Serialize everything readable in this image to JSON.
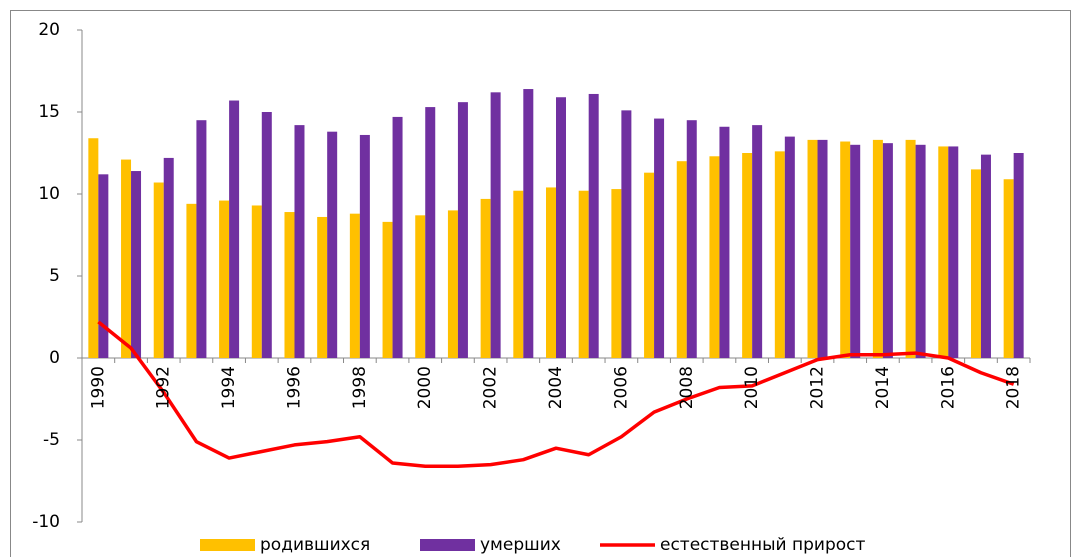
{
  "chart_data": {
    "type": "bar",
    "categories": [
      "1990",
      null,
      "1992",
      null,
      "1994",
      null,
      "1996",
      null,
      "1998",
      null,
      "2000",
      null,
      "2002",
      null,
      "2004",
      null,
      "2006",
      null,
      "2008",
      null,
      "2010",
      null,
      "2012",
      null,
      "2014",
      null,
      "2016",
      null,
      "2018"
    ],
    "series": [
      {
        "name": "родившихся",
        "color": "#ffc000",
        "values": [
          13.4,
          12.1,
          10.7,
          9.4,
          9.6,
          9.3,
          8.9,
          8.6,
          8.8,
          8.3,
          8.7,
          9.0,
          9.7,
          10.2,
          10.4,
          10.2,
          10.3,
          11.3,
          12.0,
          12.3,
          12.5,
          12.6,
          13.3,
          13.2,
          13.3,
          13.3,
          12.9,
          11.5,
          10.9
        ]
      },
      {
        "name": "умерших",
        "color": "#7030a0",
        "values": [
          11.2,
          11.4,
          12.2,
          14.5,
          15.7,
          15.0,
          14.2,
          13.8,
          13.6,
          14.7,
          15.3,
          15.6,
          16.2,
          16.4,
          15.9,
          16.1,
          15.1,
          14.6,
          14.5,
          14.1,
          14.2,
          13.5,
          13.3,
          13.0,
          13.1,
          13.0,
          12.9,
          12.4,
          12.5
        ]
      },
      {
        "name": "естественный прирост",
        "color": "#ff0000",
        "type": "line",
        "values": [
          2.2,
          0.6,
          -2.1,
          -5.1,
          -6.1,
          -5.7,
          -5.3,
          -5.1,
          -4.8,
          -6.4,
          -6.6,
          -6.6,
          -6.5,
          -6.2,
          -5.5,
          -5.9,
          -4.8,
          -3.3,
          -2.5,
          -1.8,
          -1.7,
          -0.9,
          -0.1,
          0.2,
          0.2,
          0.3,
          0.0,
          -0.9,
          -1.6
        ]
      }
    ],
    "ylim": [
      -10,
      20
    ],
    "yticks": [
      -10,
      -5,
      0,
      5,
      10,
      15,
      20
    ],
    "grid": false,
    "legend": "bottom"
  }
}
